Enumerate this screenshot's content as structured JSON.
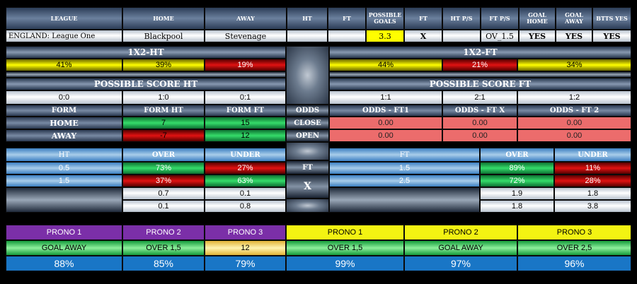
{
  "header": {
    "cols": [
      "LEAGUE",
      "HOME",
      "AWAY",
      "HT",
      "FT",
      "POSSIBLE GOALS",
      "FT",
      "HT P/S",
      "FT P/S",
      "GOAL HOME",
      "GOAL AWAY",
      "BTTS YES"
    ],
    "values": [
      "ENGLAND: League One",
      "Blackpool",
      "Stevenage",
      "",
      "",
      "3.3",
      "X",
      "",
      "OV_1.5",
      "YES",
      "YES",
      "YES"
    ]
  },
  "x12_ht": {
    "title": "1X2-HT",
    "home": "41%",
    "draw": "39%",
    "away": "19%"
  },
  "x12_ft": {
    "title": "1X2-FT",
    "home": "44%",
    "draw": "21%",
    "away": "34%"
  },
  "score_ht": {
    "title": "POSSIBLE SCORE HT",
    "scores": [
      "0:0",
      "1:0",
      "0:1"
    ]
  },
  "score_ft": {
    "title": "POSSIBLE SCORE FT",
    "scores": [
      "1:1",
      "2:1",
      "1:2"
    ]
  },
  "form": {
    "headers": [
      "FORM",
      "FORM HT",
      "FORM FT"
    ],
    "home": {
      "label": "HOME",
      "ht": "7",
      "ft": "15"
    },
    "away": {
      "label": "AWAY",
      "ht": "-7",
      "ft": "12"
    }
  },
  "odds": {
    "labels": [
      "ODDS",
      "CLOSE",
      "OPEN"
    ],
    "headers": [
      "ODDS - FT1",
      "ODDS - FT X",
      "ODDS - FT 2"
    ],
    "close": [
      "0.00",
      "0.00",
      "0.00"
    ],
    "open": [
      "0.00",
      "0.00",
      "0.00"
    ]
  },
  "ou_ht": {
    "headers": [
      "HT",
      "OVER",
      "UNDER"
    ],
    "rows": [
      {
        "line": "0.5",
        "over": "73%",
        "under": "27%"
      },
      {
        "line": "1.5",
        "over": "37%",
        "under": "63%"
      },
      {
        "line": "",
        "over": "0.7",
        "under": "0.1"
      },
      {
        "line": "",
        "over": "0.1",
        "under": "0.8"
      }
    ]
  },
  "center_mid": {
    "ft": "FT",
    "x": "X"
  },
  "ou_ft": {
    "headers": [
      "FT",
      "OVER",
      "UNDER"
    ],
    "rows": [
      {
        "line": "1.5",
        "over": "89%",
        "under": "11%"
      },
      {
        "line": "2.5",
        "over": "72%",
        "under": "28%"
      },
      {
        "line": "",
        "over": "1.9",
        "under": "1.8"
      },
      {
        "line": "",
        "over": "1.8",
        "under": "3.8"
      }
    ]
  },
  "prono": {
    "labels": [
      "PRONO 1",
      "PRONO 2",
      "PRONO 3",
      "PRONO 1",
      "PRONO 2",
      "PRONO 3"
    ],
    "picks": [
      "GOAL AWAY",
      "OVER 1,5",
      "12",
      "OVER 1,5",
      "GOAL AWAY",
      "OVER 2,5"
    ],
    "pcts": [
      "88%",
      "85%",
      "79%",
      "99%",
      "97%",
      "96%"
    ]
  },
  "colors": {
    "yellow": "#fffe00",
    "red": "#e11212",
    "green": "#35dc6a",
    "salmon": "#ec6c6c",
    "purple": "#7b2fa8",
    "blue": "#1976c6"
  }
}
